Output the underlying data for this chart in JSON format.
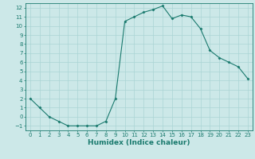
{
  "x": [
    0,
    1,
    2,
    3,
    4,
    5,
    6,
    7,
    8,
    9,
    10,
    11,
    12,
    13,
    14,
    15,
    16,
    17,
    18,
    19,
    20,
    21,
    22,
    23
  ],
  "y": [
    2,
    1,
    0,
    -0.5,
    -1,
    -1,
    -1,
    -1,
    -0.5,
    2,
    10.5,
    11,
    11.5,
    11.8,
    12.2,
    10.8,
    11.2,
    11,
    9.7,
    7.3,
    6.5,
    6,
    5.5,
    4.2
  ],
  "xlabel": "Humidex (Indice chaleur)",
  "line_color": "#1a7a6e",
  "marker": "D",
  "marker_size": 1.5,
  "bg_color": "#cce8e8",
  "grid_color": "#aad4d4",
  "xlim": [
    -0.5,
    23.5
  ],
  "ylim": [
    -1.5,
    12.5
  ],
  "yticks": [
    -1,
    0,
    1,
    2,
    3,
    4,
    5,
    6,
    7,
    8,
    9,
    10,
    11,
    12
  ],
  "xticks": [
    0,
    1,
    2,
    3,
    4,
    5,
    6,
    7,
    8,
    9,
    10,
    11,
    12,
    13,
    14,
    15,
    16,
    17,
    18,
    19,
    20,
    21,
    22,
    23
  ],
  "tick_fontsize": 5,
  "label_fontsize": 6.5
}
